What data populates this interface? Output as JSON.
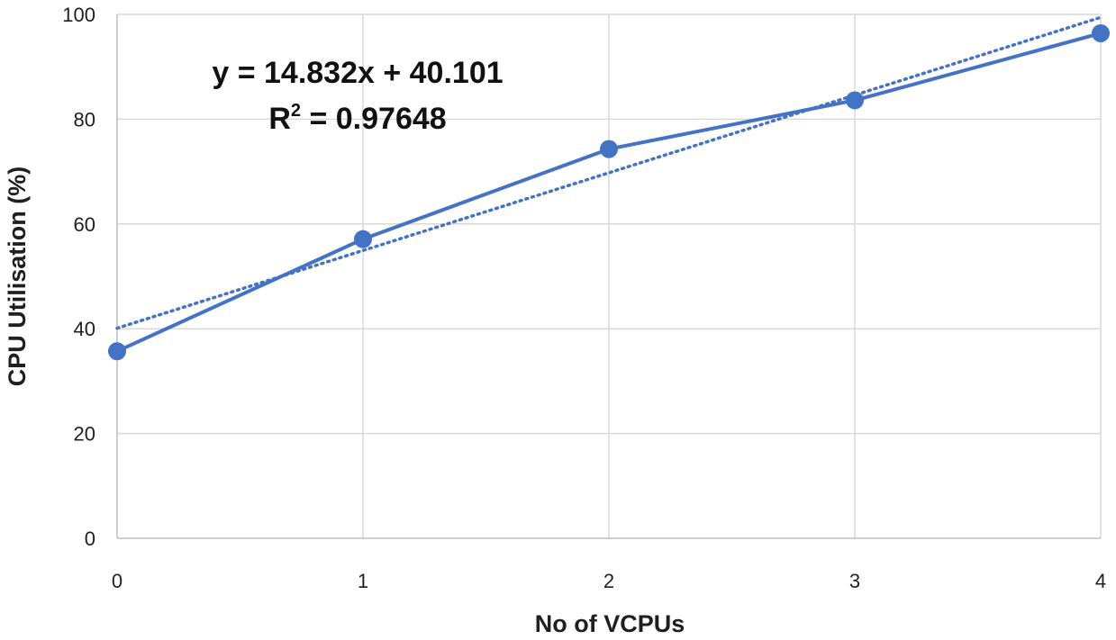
{
  "chart_data": {
    "type": "line",
    "x": [
      0,
      1,
      2,
      3,
      4
    ],
    "series": [
      {
        "values": [
          35.7,
          57.1,
          74.3,
          83.6,
          96.4
        ],
        "color": "#4472c4",
        "marker": "circle"
      }
    ],
    "trendline": {
      "kind": "linear",
      "slope": 14.832,
      "intercept": 40.101,
      "style": "dotted",
      "color": "#4472c4"
    },
    "annotation": {
      "equation": "y = 14.832x + 40.101",
      "r_squared_prefix": "R",
      "r_squared_exponent": "2",
      "r_squared_value": " = 0.97648"
    },
    "xlabel": "No of VCPUs",
    "ylabel": "CPU Utilisation (%)",
    "xlim": [
      0,
      4
    ],
    "ylim": [
      0,
      100
    ],
    "xticks": [
      0,
      1,
      2,
      3,
      4
    ],
    "yticks": [
      0,
      20,
      40,
      60,
      80,
      100
    ],
    "grid": true
  }
}
